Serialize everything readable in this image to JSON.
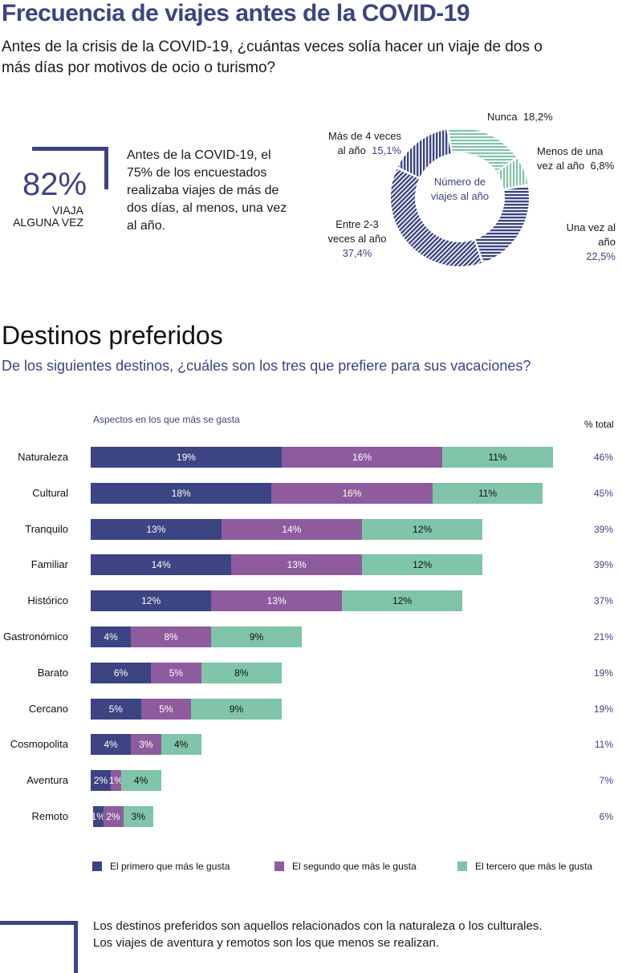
{
  "header": {
    "title": "Frecuencia de viajes antes de la COVID-19",
    "question": "Antes de la crisis de la COVID-19, ¿cuántas veces solía hacer un viaje de dos o más días por motivos de ocio o turismo?"
  },
  "stat": {
    "value": "82%",
    "caption_line1": "VIAJA",
    "caption_line2": "ALGUNA VEZ",
    "text": "Antes de la COVID-19, el 75% de los encuestados realizaba viajes de más de dos días, al menos, una vez al año."
  },
  "section": {
    "title": "Destinos preferidos",
    "question": "De los siguientes destinos, ¿cuáles son los tres que prefiere para sus vacaciones?"
  },
  "footer": {
    "text_line1": "Los destinos preferidos son aquellos relacionados con la naturaleza o los culturales.",
    "text_line2": "Los viajes de aventura y remotos son los que menos se realizan."
  },
  "colors": {
    "navy": "#3c4483",
    "purple": "#8e5c9e",
    "green": "#80c4aa"
  },
  "chart_data": [
    {
      "type": "pie",
      "variant": "donut",
      "title": "Número de viajes al año",
      "center_label": "Número de viajes al año",
      "slices": [
        {
          "label": "Nunca",
          "value": 18.2,
          "display": "18,2%",
          "color": "#80c4aa",
          "pattern": "horizontal"
        },
        {
          "label": "Menos de una vez al año",
          "value": 6.8,
          "display": "6,8%",
          "color": "#80c4aa",
          "pattern": "vertical"
        },
        {
          "label": "Una vez al año",
          "value": 22.5,
          "display": "22,5%",
          "color": "#3c4483",
          "pattern": "horizontal"
        },
        {
          "label": "Entre 2-3 veces al año",
          "value": 37.4,
          "display": "37,4%",
          "color": "#3c4483",
          "pattern": "diagonal"
        },
        {
          "label": "Más de 4 veces al año",
          "value": 15.1,
          "display": "15,1%",
          "color": "#3c4483",
          "pattern": "vertical"
        }
      ],
      "label_texts": {
        "nunca": "Nunca",
        "menos_1": "Menos de una",
        "menos_2": "vez al año",
        "una_1": "Una vez al año",
        "entre_1": "Entre 2-3",
        "entre_2": "veces al año",
        "mas_1": "Más de 4 veces",
        "mas_2": "al año"
      }
    },
    {
      "type": "bar",
      "orientation": "horizontal",
      "stacked": true,
      "subtitle": "Aspectos en los que más se gasta",
      "total_header": "% total",
      "legend_position": "bottom",
      "categories": [
        "Naturaleza",
        "Cultural",
        "Tranquilo",
        "Familiar",
        "Histórico",
        "Gastronómico",
        "Barato",
        "Cercano",
        "Cosmopolita",
        "Aventura",
        "Remoto"
      ],
      "series": [
        {
          "name": "El primero que más le gusta",
          "color": "#3c4483",
          "values": [
            19,
            18,
            13,
            14,
            12,
            4,
            6,
            5,
            4,
            2,
            1
          ]
        },
        {
          "name": "El segundo que más le gusta",
          "color": "#8e5c9e",
          "values": [
            16,
            16,
            14,
            13,
            13,
            8,
            5,
            5,
            3,
            1,
            2
          ]
        },
        {
          "name": "El tercero que más le gusta",
          "color": "#80c4aa",
          "values": [
            11,
            11,
            12,
            12,
            12,
            9,
            8,
            9,
            4,
            4,
            3
          ]
        }
      ],
      "totals": [
        46,
        45,
        39,
        39,
        37,
        21,
        19,
        19,
        11,
        7,
        6
      ],
      "unit": "%"
    }
  ]
}
